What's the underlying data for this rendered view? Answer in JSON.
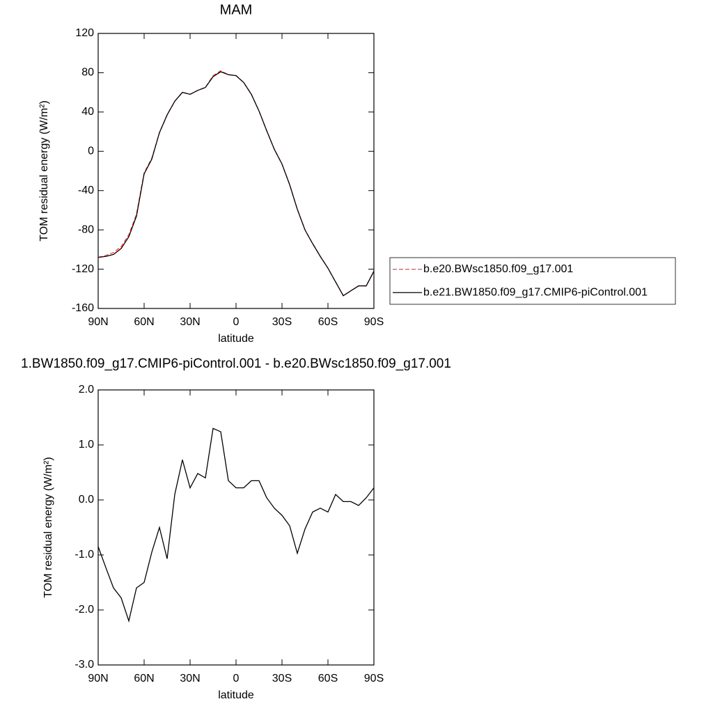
{
  "chart_data": [
    {
      "type": "line",
      "title": "MAM",
      "xlabel": "latitude",
      "ylabel": "TOM residual energy (W/m²)",
      "x": [
        90,
        85,
        80,
        75,
        70,
        65,
        60,
        55,
        50,
        45,
        40,
        35,
        30,
        25,
        20,
        15,
        10,
        5,
        0,
        -5,
        -10,
        -15,
        -20,
        -25,
        -30,
        -35,
        -40,
        -45,
        -50,
        -55,
        -60,
        -65,
        -70,
        -75,
        -80,
        -85,
        -90
      ],
      "xlim": [
        90,
        -90
      ],
      "xticks": [
        {
          "value": 90,
          "label": "90N"
        },
        {
          "value": 60,
          "label": "60N"
        },
        {
          "value": 30,
          "label": "30N"
        },
        0,
        {
          "value": -30,
          "label": "30S"
        },
        {
          "value": -60,
          "label": "60S"
        },
        {
          "value": -90,
          "label": "90S"
        }
      ],
      "ylim": [
        -160,
        120
      ],
      "yticks": [
        -160,
        -120,
        -80,
        -40,
        0,
        40,
        80,
        120
      ],
      "legend": "right",
      "series": [
        {
          "name": "b.e20.BWsc1850.f09_g17.001",
          "color": "#ff4040",
          "line_style": "dashed",
          "values": [
            -108,
            -106,
            -103,
            -97,
            -85,
            -64,
            -22,
            -7,
            19,
            37,
            51,
            60,
            58,
            62,
            65,
            77,
            82,
            78,
            77,
            70,
            58,
            41,
            21,
            2,
            -13,
            -34,
            -59,
            -80,
            -94,
            -107,
            -119,
            -133,
            -147,
            -142,
            -137,
            -137,
            -122
          ]
        },
        {
          "name": "b.e21.BW1850.f09_g17.CMIP6-piControl.001",
          "color": "#000000",
          "line_style": "solid",
          "values": [
            -108,
            -107,
            -105,
            -99,
            -87,
            -66,
            -23,
            -8,
            19,
            37,
            51,
            60,
            58,
            62,
            65,
            76,
            81,
            78,
            77,
            70,
            58,
            41,
            21,
            2,
            -13,
            -34,
            -59,
            -80,
            -94,
            -107,
            -119,
            -133,
            -147,
            -142,
            -137,
            -137,
            -122
          ]
        }
      ]
    },
    {
      "type": "line",
      "title": "1.BW1850.f09_g17.CMIP6-piControl.001 - b.e20.BWsc1850.f09_g17.001",
      "xlabel": "latitude",
      "ylabel": "TOM residual energy (W/m²)",
      "x": [
        90,
        85,
        80,
        75,
        70,
        65,
        60,
        55,
        50,
        45,
        40,
        35,
        30,
        25,
        20,
        15,
        10,
        5,
        0,
        -5,
        -10,
        -15,
        -20,
        -25,
        -30,
        -35,
        -40,
        -45,
        -50,
        -55,
        -60,
        -65,
        -70,
        -75,
        -80,
        -85,
        -90
      ],
      "xlim": [
        90,
        -90
      ],
      "xticks": [
        {
          "value": 90,
          "label": "90N"
        },
        {
          "value": 60,
          "label": "60N"
        },
        {
          "value": 30,
          "label": "30N"
        },
        0,
        {
          "value": -30,
          "label": "30S"
        },
        {
          "value": -60,
          "label": "60S"
        },
        {
          "value": -90,
          "label": "90S"
        }
      ],
      "ylim": [
        -3,
        2
      ],
      "yticks": [
        {
          "value": -3,
          "label": "-3.0"
        },
        {
          "value": -2,
          "label": "-2.0"
        },
        {
          "value": -1,
          "label": "-1.0"
        },
        {
          "value": 0,
          "label": "0.0"
        },
        {
          "value": 1,
          "label": "1.0"
        },
        {
          "value": 2,
          "label": "2.0"
        }
      ],
      "series": [
        {
          "color": "#000000",
          "line_style": "solid",
          "values": [
            -0.85,
            -1.23,
            -1.6,
            -1.78,
            -2.2,
            -1.6,
            -1.5,
            -0.95,
            -0.5,
            -1.07,
            0.1,
            0.73,
            0.22,
            0.48,
            0.4,
            1.3,
            1.24,
            0.35,
            0.22,
            0.22,
            0.35,
            0.35,
            0.04,
            -0.15,
            -0.28,
            -0.47,
            -0.97,
            -0.53,
            -0.22,
            -0.15,
            -0.22,
            0.1,
            -0.03,
            -0.03,
            -0.1,
            0.04,
            0.22
          ]
        }
      ]
    }
  ]
}
